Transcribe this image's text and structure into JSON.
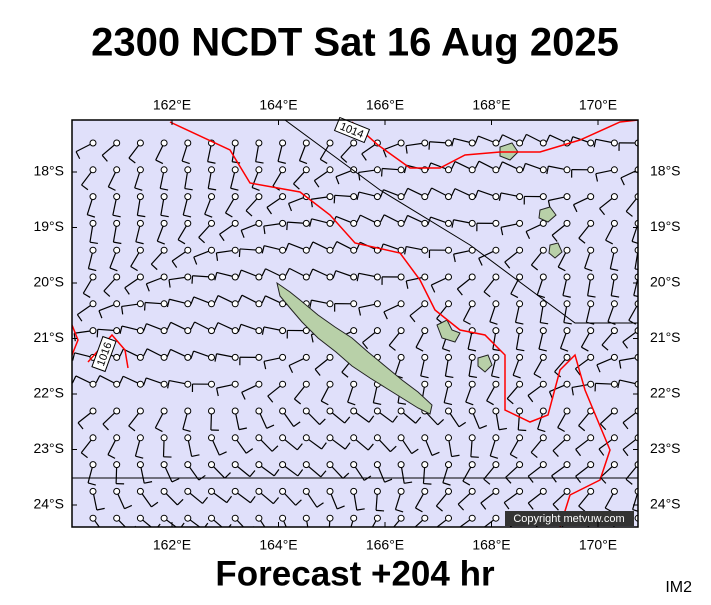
{
  "title": "2300 NCDT Sat 16 Aug 2025",
  "footer": "Forecast +204 hr",
  "corner_label": "IM2",
  "copyright": "Copyright metvuw.com",
  "map": {
    "lon_ticks": [
      {
        "value": 162,
        "label": "162°E"
      },
      {
        "value": 164,
        "label": "164°E"
      },
      {
        "value": 166,
        "label": "166°E"
      },
      {
        "value": 168,
        "label": "168°E"
      },
      {
        "value": 170,
        "label": "170°E"
      }
    ],
    "lat_ticks": [
      {
        "value": 18,
        "label": "18°S"
      },
      {
        "value": 19,
        "label": "19°S"
      },
      {
        "value": 20,
        "label": "20°S"
      },
      {
        "value": 21,
        "label": "21°S"
      },
      {
        "value": 22,
        "label": "22°S"
      },
      {
        "value": 23,
        "label": "23°S"
      },
      {
        "value": 24,
        "label": "24°S"
      }
    ],
    "isobar_labels": [
      "1014",
      "1016"
    ]
  }
}
